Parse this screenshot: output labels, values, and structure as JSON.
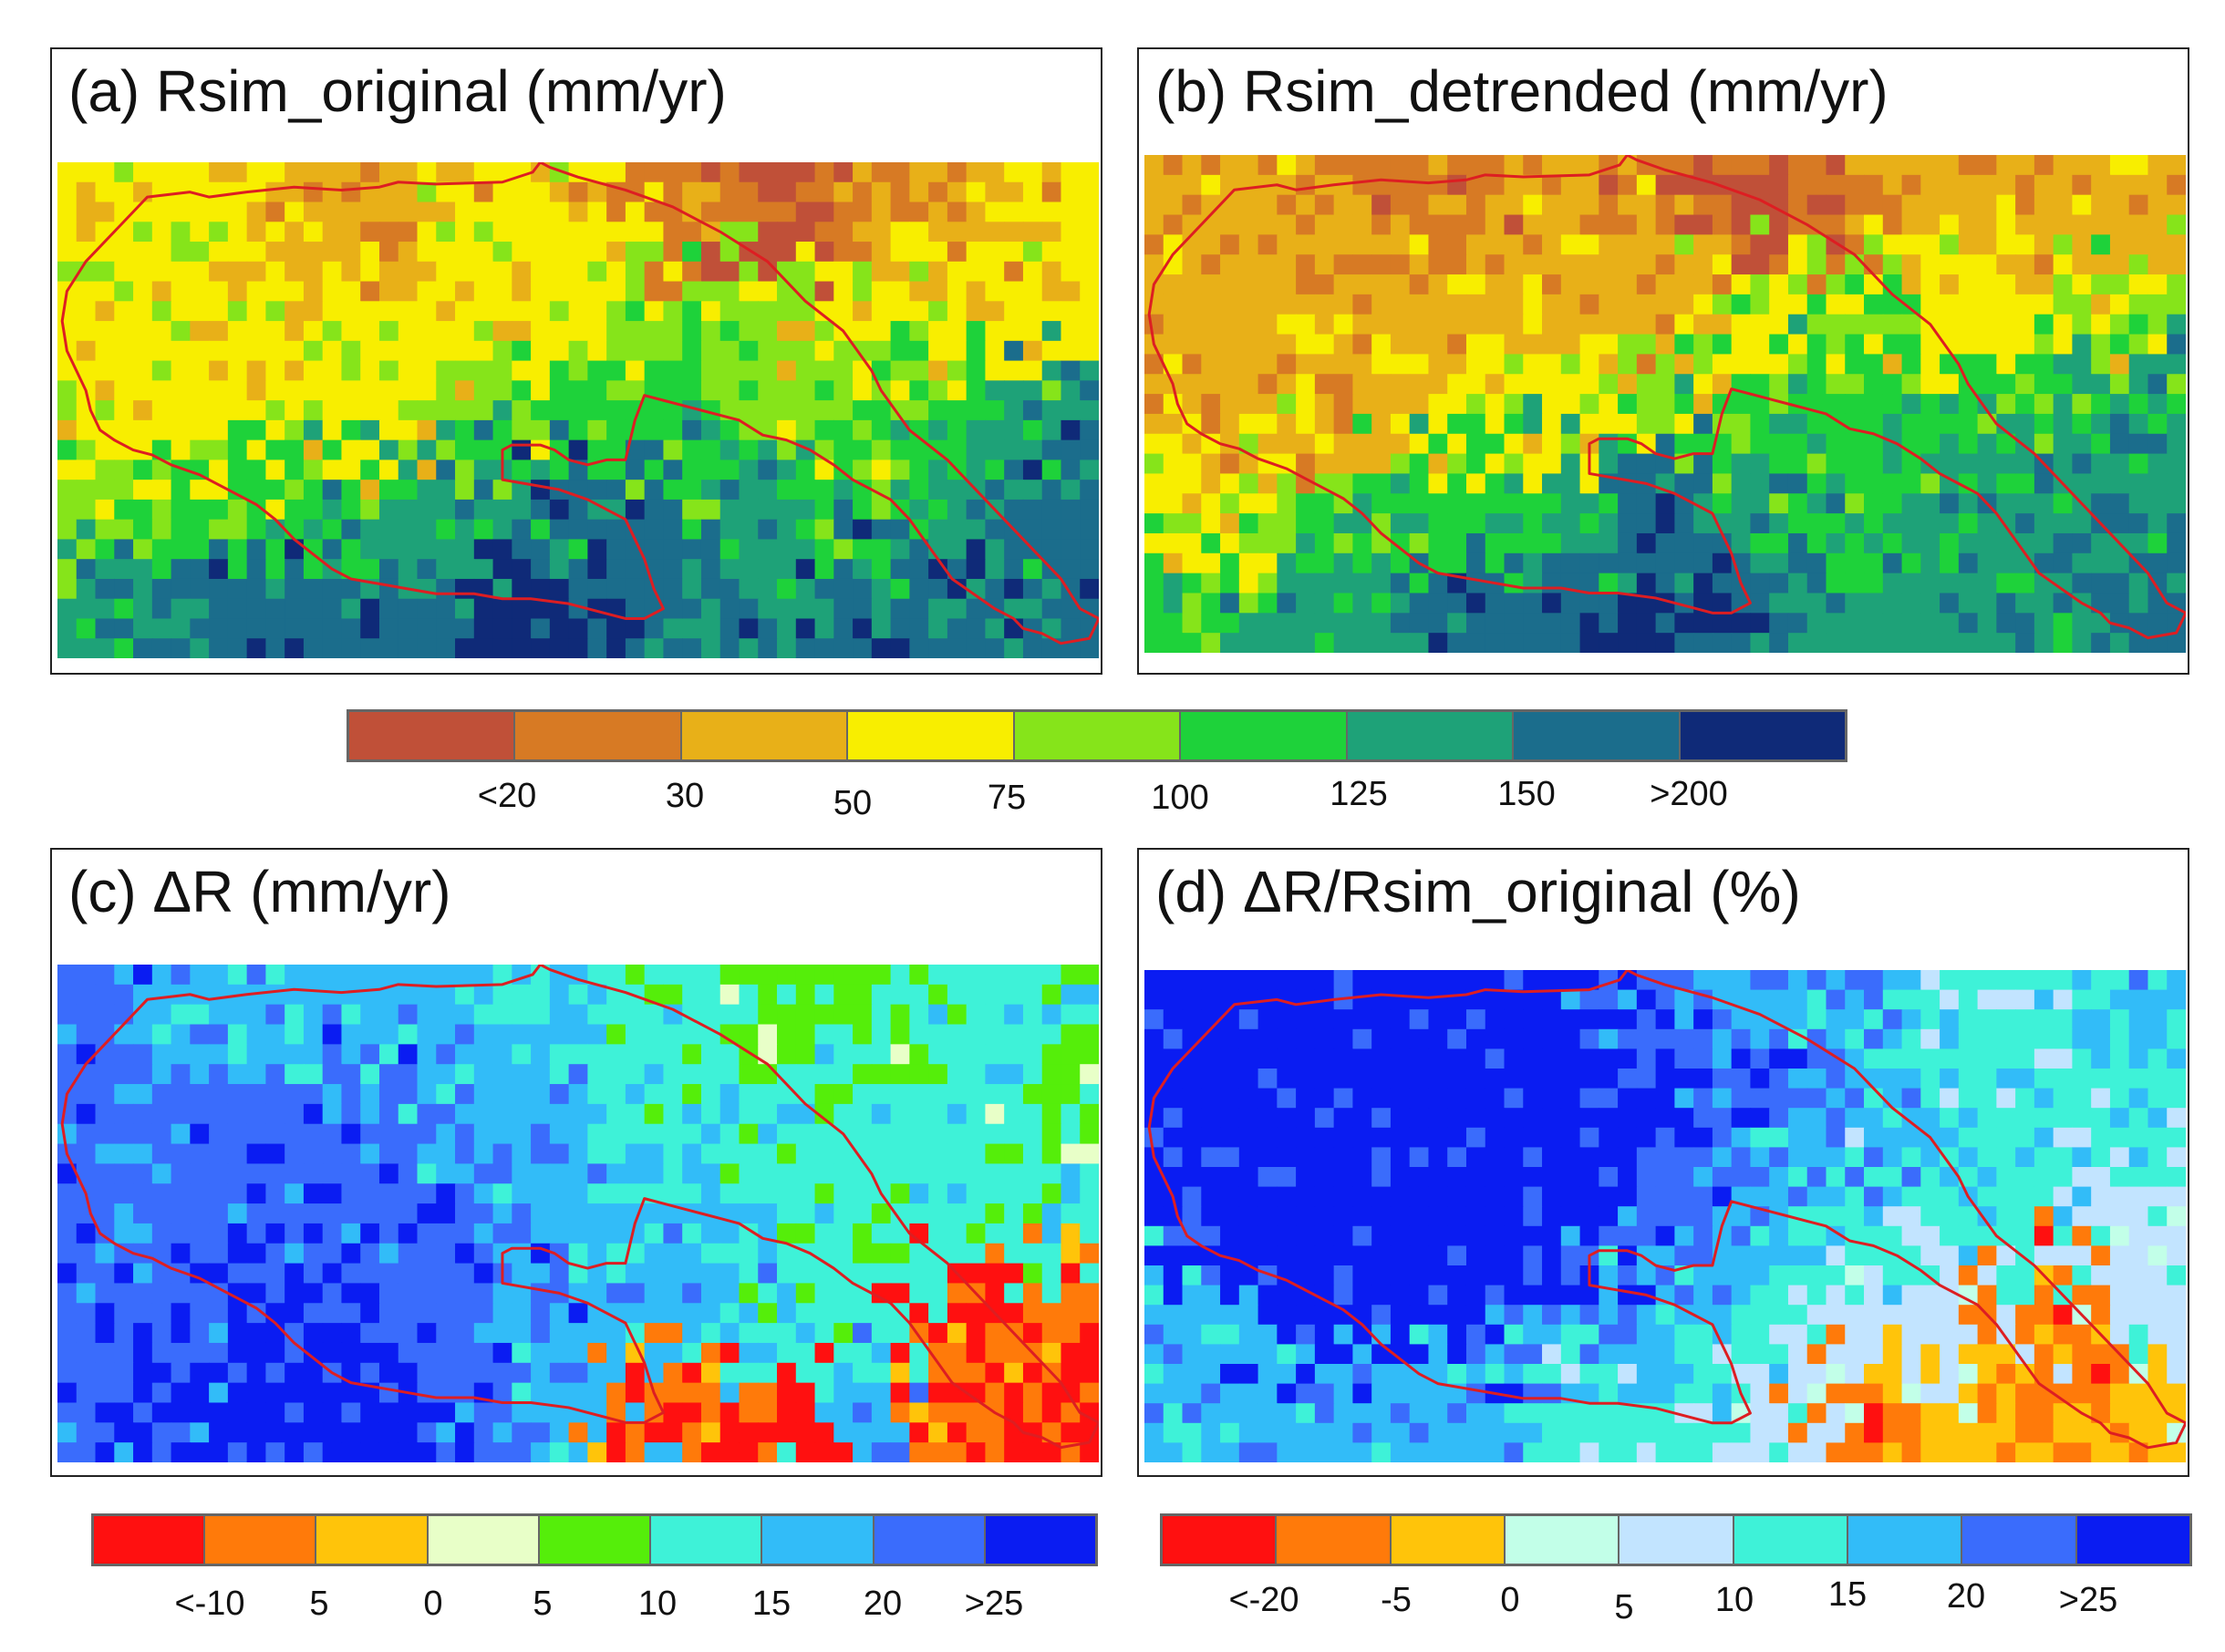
{
  "panels": [
    {
      "id": "a",
      "title": "(a) Rsim_original (mm/yr)",
      "palette": "runoff",
      "color_indices": [
        [
          3,
          3,
          2,
          2,
          3,
          3,
          1,
          0,
          1,
          2,
          3
        ],
        [
          3,
          3,
          3,
          3,
          3,
          3,
          4,
          4,
          3,
          3,
          3
        ],
        [
          3,
          3,
          3,
          3,
          4,
          5,
          5,
          4,
          4,
          5,
          6
        ],
        [
          4,
          5,
          5,
          6,
          6,
          7,
          7,
          6,
          5,
          6,
          7
        ],
        [
          6,
          7,
          7,
          7,
          8,
          8,
          7,
          6,
          7,
          7,
          7
        ]
      ]
    },
    {
      "id": "b",
      "title": "(b) Rsim_detrended (mm/yr)",
      "palette": "runoff",
      "color_indices": [
        [
          2,
          2,
          1,
          1,
          2,
          1,
          0,
          1,
          2,
          2,
          2
        ],
        [
          2,
          2,
          2,
          2,
          2,
          2,
          3,
          4,
          3,
          3,
          4
        ],
        [
          2,
          2,
          2,
          3,
          3,
          4,
          5,
          5,
          5,
          5,
          6
        ],
        [
          3,
          4,
          5,
          5,
          6,
          7,
          6,
          5,
          6,
          6,
          6
        ],
        [
          5,
          6,
          6,
          7,
          7,
          8,
          7,
          6,
          6,
          6,
          7
        ]
      ]
    },
    {
      "id": "c",
      "title": "(c) ΔR (mm/yr)",
      "palette": "delta",
      "color_indices": [
        [
          7,
          6,
          6,
          6,
          6,
          5,
          5,
          4,
          4,
          5,
          5
        ],
        [
          7,
          7,
          7,
          7,
          6,
          6,
          5,
          5,
          5,
          5,
          4
        ],
        [
          7,
          7,
          7,
          7,
          7,
          6,
          6,
          5,
          5,
          5,
          5
        ],
        [
          7,
          7,
          8,
          7,
          7,
          6,
          6,
          5,
          5,
          0,
          1
        ],
        [
          7,
          8,
          8,
          8,
          7,
          6,
          1,
          0,
          6,
          1,
          0
        ]
      ]
    },
    {
      "id": "d",
      "title": "(d) ΔR/Rsim_original (%)",
      "palette": "ratio",
      "color_indices": [
        [
          8,
          8,
          8,
          8,
          8,
          7,
          6,
          6,
          5,
          5,
          6
        ],
        [
          8,
          8,
          8,
          8,
          8,
          8,
          7,
          6,
          6,
          5,
          5
        ],
        [
          8,
          8,
          8,
          8,
          8,
          7,
          6,
          5,
          5,
          5,
          4
        ],
        [
          6,
          8,
          8,
          8,
          7,
          6,
          5,
          4,
          4,
          1,
          4
        ],
        [
          6,
          6,
          6,
          6,
          5,
          5,
          4,
          1,
          2,
          1,
          2
        ]
      ]
    }
  ],
  "palettes": {
    "runoff": [
      "#c05038",
      "#d77a24",
      "#e8b018",
      "#f8ee00",
      "#86e41a",
      "#1ed23a",
      "#1ea278",
      "#1b6d8c",
      "#0f2a78"
    ],
    "delta": [
      "#ff1010",
      "#ff7a0a",
      "#ffc40a",
      "#e8ffc8",
      "#55ee0a",
      "#3ef2d8",
      "#32bcf8",
      "#3a6cfc",
      "#0a1cf2"
    ],
    "ratio": [
      "#ff1010",
      "#ff7a0a",
      "#ffc40a",
      "#c2ffe8",
      "#c2e4ff",
      "#3ef2d8",
      "#32bcf8",
      "#3a6cfc",
      "#0a1cf2"
    ]
  },
  "boundary_color": "#dd1e22",
  "colorbars": [
    {
      "id": "runoff",
      "palette": "runoff",
      "labels": [
        "<20",
        "30",
        "50",
        "75",
        "100",
        "125",
        "150",
        ">200"
      ]
    },
    {
      "id": "delta",
      "palette": "delta",
      "labels": [
        "<-10",
        "5",
        "0",
        "5",
        "10",
        "15",
        "20",
        ">25"
      ]
    },
    {
      "id": "ratio",
      "palette": "ratio",
      "labels": [
        "<-20",
        "-5",
        "0",
        "5",
        "10",
        "15",
        "20",
        ">25"
      ]
    }
  ]
}
